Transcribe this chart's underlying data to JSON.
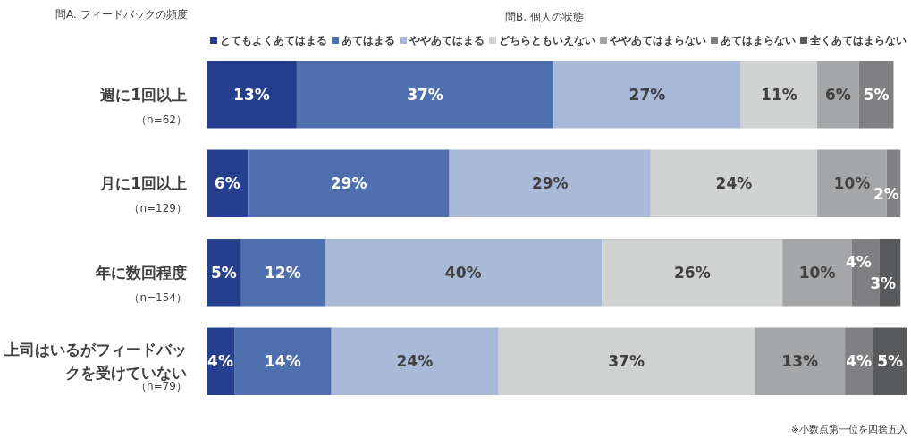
{
  "chart_data": {
    "type": "bar",
    "orientation": "horizontal",
    "stacked": true,
    "title": "問B. 個人の状態",
    "ylabel": "問A. フィードバックの頻度",
    "categories": [
      "週に1回以上",
      "月に1回以上",
      "年に数回程度",
      "上司はいるがフィードバックを受けていない"
    ],
    "xlim": [
      0,
      101
    ],
    "legend": "top",
    "grid": false,
    "series": [
      {
        "name": "とてもよくあてはまる",
        "color": "#253f8e",
        "values": [
          13,
          6,
          5,
          4
        ],
        "value_labels": [
          "13%",
          "6%",
          "5%",
          "4%"
        ]
      },
      {
        "name": "あてはまる",
        "color": "#4f6fae",
        "values": [
          37,
          29,
          12,
          14
        ],
        "value_labels": [
          "37%",
          "29%",
          "12%",
          "14%"
        ]
      },
      {
        "name": "ややあてはまる",
        "color": "#a9b9d8",
        "values": [
          27,
          29,
          40,
          24
        ],
        "value_labels": [
          "27%",
          "29%",
          "40%",
          "24%"
        ]
      },
      {
        "name": "どちらともいえない",
        "color": "#d0d1d1",
        "values": [
          11,
          24,
          26,
          37
        ],
        "value_labels": [
          "11%",
          "24%",
          "26%",
          "37%"
        ]
      },
      {
        "name": "ややあてはまらない",
        "color": "#a5a6a8",
        "values": [
          6,
          10,
          10,
          13
        ],
        "value_labels": [
          "6%",
          "10%",
          "10%",
          "13%"
        ]
      },
      {
        "name": "あてはまらない",
        "color": "#808083",
        "values": [
          5,
          2,
          4,
          4
        ],
        "value_labels": [
          "5%",
          "2%",
          "4%",
          "4%"
        ]
      },
      {
        "name": "全くあてはまらない",
        "color": "#58595b",
        "values": [
          0,
          0,
          3,
          5
        ],
        "value_labels": [
          null,
          null,
          "3%",
          "5%"
        ]
      }
    ],
    "annotations": [
      "（n=62）",
      "（n=129）",
      "（n=154）",
      "（n=79）",
      "※小数点第一位を四捨五入"
    ]
  }
}
